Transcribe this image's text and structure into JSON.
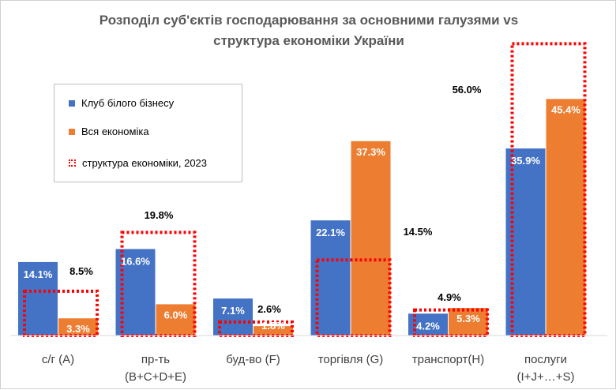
{
  "chart_data": {
    "type": "bar",
    "title_line1": "Розподіл суб'єктів господарювання за основними галузями vs",
    "title_line2": "структура економіки України",
    "categories": [
      {
        "line1": "с/г (А)",
        "line2": ""
      },
      {
        "line1": "пр-ть",
        "line2": "(B+C+D+E)"
      },
      {
        "line1": "буд-во (F)",
        "line2": ""
      },
      {
        "line1": "торгівля (G)",
        "line2": ""
      },
      {
        "line1": "транспорт(H)",
        "line2": ""
      },
      {
        "line1": "послуги",
        "line2": "(I+J+…+S)"
      }
    ],
    "series": [
      {
        "name": "Клуб білого бізнесу",
        "color": "#4472c4",
        "values": [
          14.1,
          16.6,
          7.1,
          22.1,
          4.2,
          35.9
        ],
        "labels": [
          "14.1%",
          "16.6%",
          "7.1%",
          "22.1%",
          "4.2%",
          "35.9%"
        ]
      },
      {
        "name": "Вся економіка",
        "color": "#ed7d31",
        "values": [
          3.3,
          6.0,
          1.8,
          37.3,
          5.3,
          45.4
        ],
        "labels": [
          "3.3%",
          "6.0%",
          "1.8%",
          "37.3%",
          "5.3%",
          "45.4%"
        ]
      },
      {
        "name": "структура економіки, 2023",
        "color": "#ff0000",
        "style": "dotted-outline",
        "values": [
          8.5,
          19.8,
          2.6,
          14.5,
          4.9,
          56.0
        ],
        "labels": [
          "8.5%",
          "19.8%",
          "2.6%",
          "14.5%",
          "4.9%",
          "56.0%"
        ]
      }
    ],
    "ylim": [
      0,
      56
    ],
    "legend_position": "top-left",
    "grid": false
  }
}
